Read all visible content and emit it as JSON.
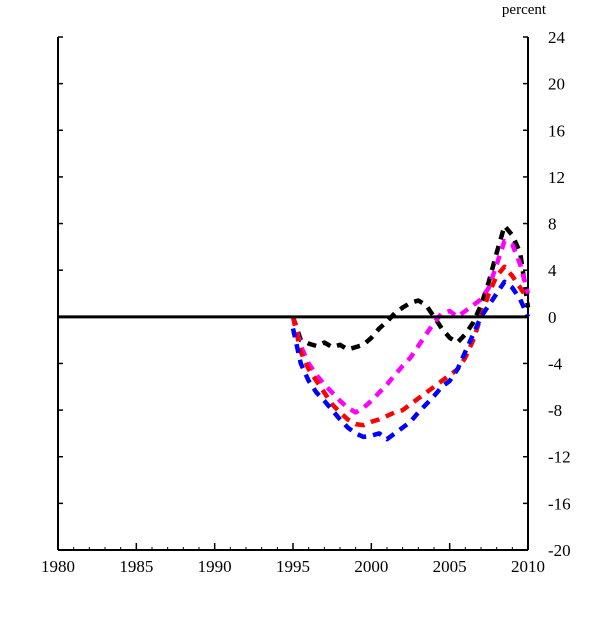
{
  "chart_data": {
    "type": "line",
    "title": "",
    "xlabel": "",
    "ylabel": "",
    "y_unit_label": "percent",
    "y_axis_side": "right",
    "xlim": [
      1980,
      2010
    ],
    "ylim": [
      -20,
      24
    ],
    "x_ticks": [
      1980,
      1985,
      1990,
      1995,
      2000,
      2005,
      2010
    ],
    "y_ticks": [
      24,
      20,
      16,
      12,
      8,
      4,
      0,
      -4,
      -8,
      -12,
      -16,
      -20
    ],
    "zero_line": true,
    "grid": false,
    "legend": "none",
    "series": [
      {
        "color": "#000000",
        "style": "dashed",
        "x": [
          1995.0,
          1995.5,
          1996.0,
          1996.5,
          1997.0,
          1997.5,
          1998.0,
          1998.5,
          1999.0,
          1999.5,
          2000.0,
          2000.5,
          2001.0,
          2001.5,
          2002.0,
          2002.5,
          2003.0,
          2003.5,
          2004.0,
          2004.5,
          2005.0,
          2005.5,
          2006.0,
          2006.5,
          2007.0,
          2007.5,
          2008.0,
          2008.5,
          2009.0,
          2009.5,
          2010.0
        ],
        "values": [
          0.0,
          -2.0,
          -2.3,
          -2.5,
          -2.2,
          -2.6,
          -2.4,
          -2.8,
          -2.6,
          -2.4,
          -1.8,
          -1.0,
          -0.4,
          0.3,
          0.8,
          1.2,
          1.4,
          1.0,
          0.0,
          -1.0,
          -1.8,
          -2.2,
          -1.5,
          -0.5,
          1.0,
          3.0,
          5.5,
          7.8,
          7.0,
          5.5,
          0.8
        ]
      },
      {
        "color": "#ff00ff",
        "style": "dashed",
        "x": [
          1995.0,
          1995.5,
          1996.0,
          1996.5,
          1997.0,
          1997.5,
          1998.0,
          1998.5,
          1999.0,
          1999.5,
          2000.0,
          2000.5,
          2001.0,
          2001.5,
          2002.0,
          2002.5,
          2003.0,
          2003.5,
          2004.0,
          2004.5,
          2005.0,
          2005.5,
          2006.0,
          2006.5,
          2007.0,
          2007.5,
          2008.0,
          2008.5,
          2009.0,
          2009.5,
          2010.0
        ],
        "values": [
          0.0,
          -2.5,
          -4.0,
          -5.0,
          -5.8,
          -6.5,
          -7.2,
          -7.8,
          -8.2,
          -7.8,
          -7.2,
          -6.5,
          -5.8,
          -5.0,
          -4.2,
          -3.5,
          -2.5,
          -1.5,
          -0.5,
          0.3,
          0.5,
          0.0,
          0.5,
          1.0,
          1.5,
          2.5,
          4.5,
          6.5,
          6.2,
          4.5,
          2.0
        ]
      },
      {
        "color": "#ff0000",
        "style": "dashed",
        "x": [
          1995.0,
          1995.5,
          1996.0,
          1996.5,
          1997.0,
          1997.5,
          1998.0,
          1998.5,
          1999.0,
          1999.5,
          2000.0,
          2000.5,
          2001.0,
          2001.5,
          2002.0,
          2002.5,
          2003.0,
          2003.5,
          2004.0,
          2004.5,
          2005.0,
          2005.5,
          2006.0,
          2006.5,
          2007.0,
          2007.5,
          2008.0,
          2008.5,
          2009.0,
          2009.5,
          2010.0
        ],
        "values": [
          0.0,
          -3.0,
          -4.5,
          -5.5,
          -6.5,
          -7.5,
          -8.2,
          -8.8,
          -9.2,
          -9.3,
          -9.0,
          -8.8,
          -8.5,
          -8.2,
          -8.0,
          -7.5,
          -7.0,
          -6.5,
          -6.0,
          -5.5,
          -5.0,
          -4.5,
          -3.5,
          -2.0,
          0.0,
          2.0,
          3.5,
          4.3,
          3.5,
          2.5,
          1.5
        ]
      },
      {
        "color": "#0000ff",
        "style": "dashed",
        "x": [
          1995.0,
          1995.5,
          1996.0,
          1996.5,
          1997.0,
          1997.5,
          1998.0,
          1998.5,
          1999.0,
          1999.5,
          2000.0,
          2000.5,
          2001.0,
          2001.5,
          2002.0,
          2002.5,
          2003.0,
          2003.5,
          2004.0,
          2004.5,
          2005.0,
          2005.5,
          2006.0,
          2006.5,
          2007.0,
          2007.5,
          2008.0,
          2008.5,
          2009.0,
          2009.5,
          2010.0
        ],
        "values": [
          -1.0,
          -4.0,
          -5.5,
          -6.5,
          -7.2,
          -8.0,
          -8.8,
          -9.5,
          -10.0,
          -10.3,
          -10.2,
          -10.0,
          -10.5,
          -10.0,
          -9.5,
          -9.0,
          -8.2,
          -7.5,
          -6.8,
          -6.0,
          -5.5,
          -4.5,
          -3.0,
          -1.5,
          0.0,
          1.0,
          2.0,
          3.0,
          2.5,
          1.5,
          0.0
        ]
      }
    ]
  }
}
